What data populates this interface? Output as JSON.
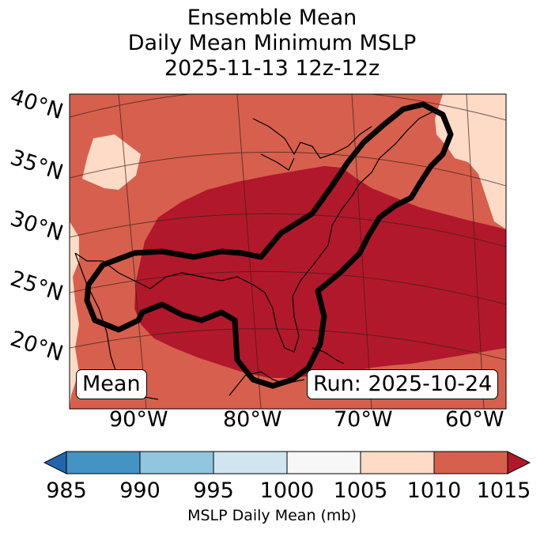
{
  "title": {
    "line1": "Ensemble Mean",
    "line2": "Daily Mean Minimum MSLP",
    "line3": "2025-11-13 12z-12z"
  },
  "map": {
    "lat_labels": [
      "40°N",
      "35°N",
      "30°N",
      "25°N",
      "20°N"
    ],
    "lon_labels": [
      "90°W",
      "80°W",
      "70°W",
      "60°W"
    ],
    "mean_box": "Mean",
    "run_box": "Run: 2025-10-24",
    "colors": {
      "c1010_1015": "#d6604d",
      "c1005_1010": "#fddbc7",
      "c1015_plus": "#b2182b"
    }
  },
  "colorbar": {
    "ticks": [
      "985",
      "990",
      "995",
      "1000",
      "1005",
      "1010",
      "1015"
    ],
    "label": "MSLP Daily Mean (mb)",
    "colors": [
      "#2166ac",
      "#4393c3",
      "#92c5de",
      "#d1e5f0",
      "#f7f7f7",
      "#fddbc7",
      "#d6604d",
      "#b2182b"
    ]
  }
}
